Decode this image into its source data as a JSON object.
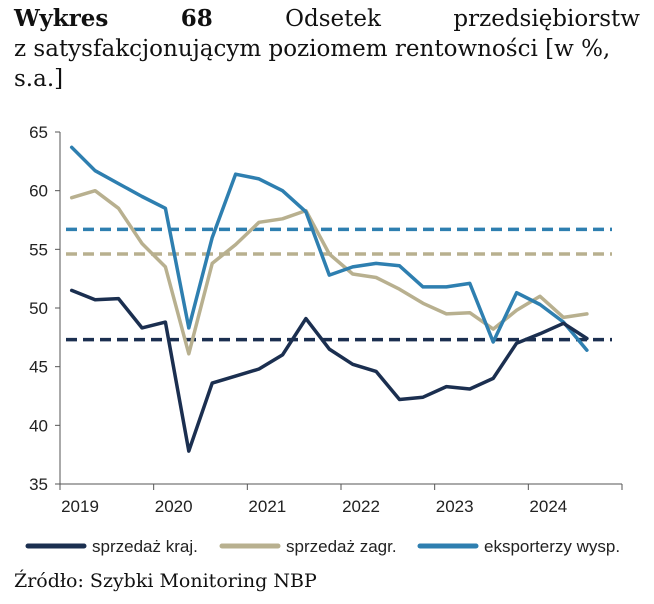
{
  "title": {
    "label": "Wykres",
    "number": "68",
    "word1": "Odsetek",
    "word2": "przedsiębiorstw",
    "line2": "z satysfakcjonującym poziomem rentowności [w %,",
    "line3": "s.a.]"
  },
  "source": "Źródło: Szybki Monitoring NBP",
  "chart_data": {
    "type": "line",
    "title": "Odsetek przedsiębiorstw z satysfakcjonującym poziomem rentowności [w %, s.a.]",
    "xlabel": "",
    "ylabel": "",
    "ylim": [
      35,
      65
    ],
    "yticks": [
      35,
      40,
      45,
      50,
      55,
      60,
      65
    ],
    "xtick_labels": [
      "2019",
      "2020",
      "2021",
      "2022",
      "2023",
      "2024"
    ],
    "x": [
      "2019Q1",
      "2019Q2",
      "2019Q3",
      "2019Q4",
      "2020Q1",
      "2020Q2",
      "2020Q3",
      "2020Q4",
      "2021Q1",
      "2021Q2",
      "2021Q3",
      "2021Q4",
      "2022Q1",
      "2022Q2",
      "2022Q3",
      "2022Q4",
      "2023Q1",
      "2023Q2",
      "2023Q3",
      "2023Q4",
      "2024Q1",
      "2024Q2",
      "2024Q3"
    ],
    "series": [
      {
        "name": "sprzedaż kraj.",
        "color": "#1b2f50",
        "values": [
          51.5,
          50.7,
          50.8,
          48.3,
          48.8,
          37.8,
          43.6,
          44.2,
          44.8,
          46.0,
          49.1,
          46.5,
          45.2,
          44.6,
          42.2,
          42.4,
          43.3,
          43.1,
          44.0,
          47.0,
          47.8,
          48.7,
          47.4
        ],
        "avg": 47.3
      },
      {
        "name": "sprzedaż zagr.",
        "color": "#b8b08f",
        "values": [
          59.4,
          60.0,
          58.5,
          55.5,
          53.5,
          46.1,
          53.8,
          55.4,
          57.3,
          57.6,
          58.3,
          54.6,
          52.9,
          52.6,
          51.6,
          50.4,
          49.5,
          49.6,
          48.2,
          49.8,
          51.0,
          49.2,
          49.5
        ],
        "avg": 54.6
      },
      {
        "name": "eksporterzy wysp.",
        "color": "#2e7fb0",
        "values": [
          63.7,
          61.7,
          60.6,
          59.5,
          58.5,
          48.3,
          56.0,
          61.4,
          61.0,
          60.0,
          58.2,
          52.8,
          53.5,
          53.8,
          53.6,
          51.8,
          51.8,
          52.1,
          47.1,
          51.3,
          50.3,
          48.8,
          46.4
        ],
        "avg": 56.7
      }
    ],
    "legend": [
      "sprzedaż kraj.",
      "sprzedaż zagr.",
      "eksporterzy wysp."
    ],
    "legend_position": "bottom"
  }
}
